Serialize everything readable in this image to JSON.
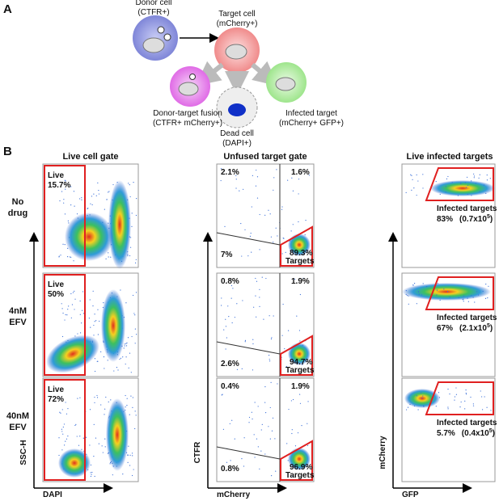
{
  "panel_a": {
    "label": "A",
    "donor": [
      "Donor cell",
      "(CTFR+)"
    ],
    "target": [
      "Target cell",
      "(mCherry+)"
    ],
    "fusion": [
      "Donor-target fusion",
      "(CTFR+ mCherry+)"
    ],
    "dead": [
      "Dead cell",
      "(DAPI+)"
    ],
    "infected": [
      "Infected target",
      "(mCherry+ GFP+)"
    ]
  },
  "panel_b": {
    "label": "B",
    "column_titles": [
      "Live cell gate",
      "Unfused target gate",
      "Live infected targets"
    ],
    "axes": [
      [
        "SSC-H",
        "DAPI"
      ],
      [
        "CTFR",
        "mCherry"
      ],
      [
        "mCherry",
        "GFP"
      ]
    ],
    "conditions": [
      [
        "No",
        "drug"
      ],
      [
        "4nM",
        "EFV"
      ],
      [
        "40nM",
        "EFV"
      ]
    ],
    "rows": [
      {
        "live": [
          "Live",
          "15.7%"
        ],
        "quadrants": [
          "2.1%",
          "1.6%",
          "7%",
          "89.3%",
          "Targets"
        ],
        "infected": [
          "Infected targets",
          "83%",
          "(0.7x10",
          "5",
          ")"
        ]
      },
      {
        "live": [
          "Live",
          "50%"
        ],
        "quadrants": [
          "0.8%",
          "1.9%",
          "2.6%",
          "94.7%",
          "Targets"
        ],
        "infected": [
          "Infected targets",
          "67%",
          "(2.1x10",
          "5",
          ")"
        ]
      },
      {
        "live": [
          "Live",
          "72%"
        ],
        "quadrants": [
          "0.4%",
          "1.9%",
          "0.8%",
          "96.9%",
          "Targets"
        ],
        "infected": [
          "Infected targets",
          "5.7%",
          "(0.4x10",
          "5",
          ")"
        ]
      }
    ]
  }
}
